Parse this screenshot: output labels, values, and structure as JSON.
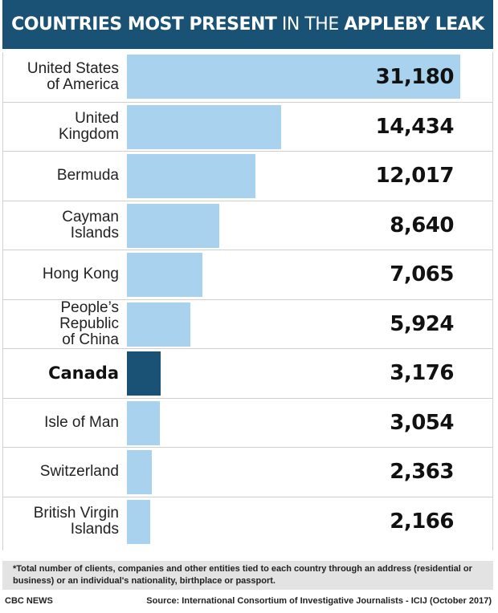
{
  "title": {
    "part1": "COUNTRIES MOST PRESENT",
    "part2": " IN THE ",
    "part3": "APPLEBY LEAK"
  },
  "colors": {
    "header_bg": "#1a5276",
    "bar": "#a8d2ee",
    "highlight_bar": "#1a5276",
    "note_bg": "#e3e3e3"
  },
  "chart_data": {
    "type": "bar",
    "orientation": "horizontal",
    "categories": [
      "United States of America",
      "United Kingdom",
      "Bermuda",
      "Cayman Islands",
      "Hong Kong",
      "People’s Republic of China",
      "Canada",
      "Isle of Man",
      "Switzerland",
      "British Virgin Islands"
    ],
    "values": [
      31180,
      14434,
      12017,
      8640,
      7065,
      5924,
      3176,
      3054,
      2363,
      2166
    ],
    "value_labels": [
      "31,180",
      "14,434",
      "12,017",
      "8,640",
      "7,065",
      "5,924",
      "3,176",
      "3,054",
      "2,363",
      "2,166"
    ],
    "highlight": "Canada",
    "xlim": [
      0,
      31180
    ],
    "grid": false
  },
  "footnote": "*Total number of clients, companies and other entities tied to each country through an address (residential or business) or an individual's nationality, birthplace or passport.",
  "footer": {
    "credit": "CBC NEWS",
    "source": "Source: International Consortium of Investigative Journalists - ICIJ (October 2017)"
  }
}
